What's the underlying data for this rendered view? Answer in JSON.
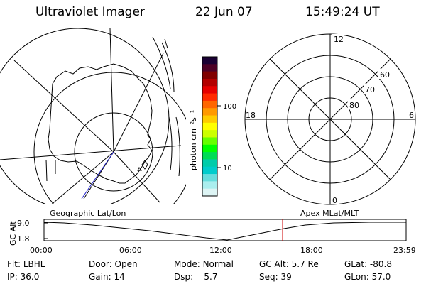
{
  "header": {
    "instrument": "Ultraviolet Imager",
    "date": "22 Jun 07",
    "time": "15:49:24 UT"
  },
  "colorbar": {
    "unit_label": "photon cm⁻²s⁻¹",
    "tick_labels": [
      "100",
      "10"
    ],
    "colors": [
      "#1a0033",
      "#4d0026",
      "#800000",
      "#b30000",
      "#e60000",
      "#ff2a00",
      "#ff6600",
      "#ff9900",
      "#ffcc00",
      "#ffff00",
      "#ccff00",
      "#66ff00",
      "#00ff00",
      "#00dd55",
      "#00ccaa",
      "#00cccc",
      "#66dddd",
      "#aaeeee",
      "#ddf4f4"
    ]
  },
  "polar_grid": {
    "mlt_labels": [
      "12",
      "18",
      "6",
      "0"
    ],
    "lat_labels": [
      "60",
      "70",
      "80"
    ]
  },
  "geo_map": {
    "label": "Geographic Lat/Lon"
  },
  "apex_map": {
    "label": "Apex MLat/MLT"
  },
  "altitude_plot": {
    "ylabel": "GC Alt",
    "ytick_labels": [
      "9.0",
      "1.8"
    ],
    "xtick_labels": [
      "00:00",
      "06:00",
      "12:00",
      "18:00",
      "23:59"
    ],
    "current_time_color": "#cc0000"
  },
  "status": {
    "row1": [
      {
        "label": "Flt:",
        "value": "LBHL"
      },
      {
        "label": "Door:",
        "value": "Open"
      },
      {
        "label": "Mode:",
        "value": "Normal"
      },
      {
        "label": "GC Alt:",
        "value": "5.7 Re"
      },
      {
        "label": "GLat:",
        "value": "-80.8"
      }
    ],
    "row2": [
      {
        "label": "IP:",
        "value": "36.0"
      },
      {
        "label": "Gain:",
        "value": "14"
      },
      {
        "label": "Dsp:",
        "value": "5.7"
      },
      {
        "label": "Seq:",
        "value": "39"
      },
      {
        "label": "GLon:",
        "value": "57.0"
      }
    ]
  }
}
